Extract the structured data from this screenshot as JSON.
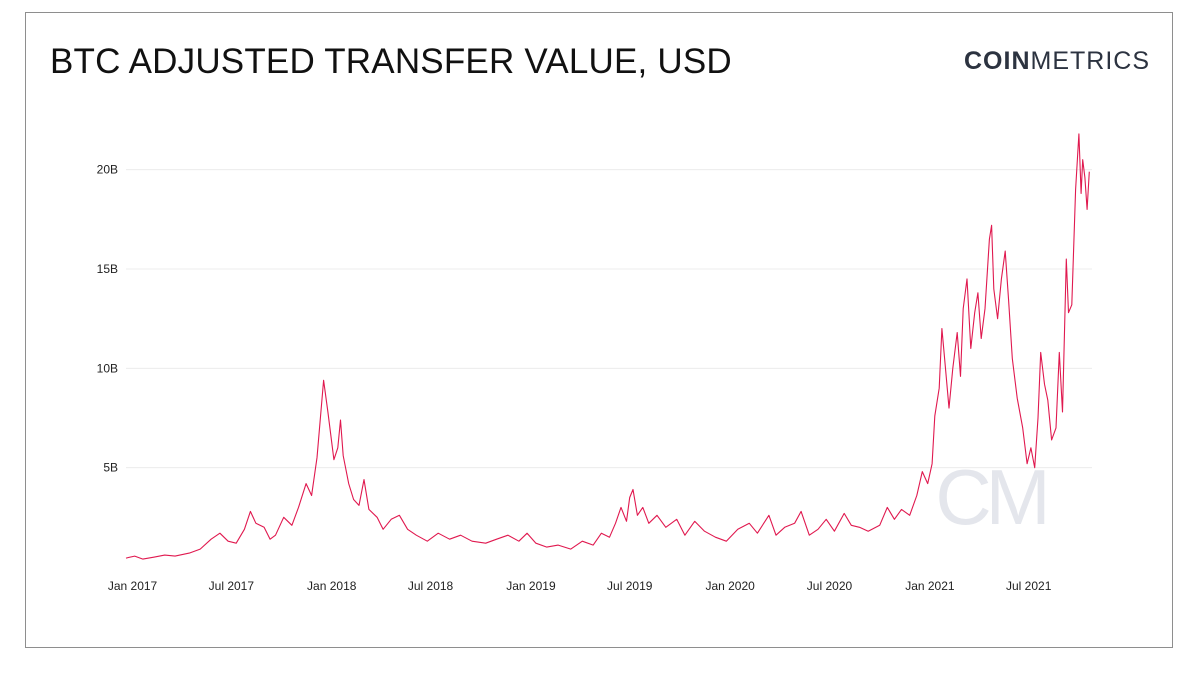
{
  "header": {
    "title": "BTC ADJUSTED TRANSFER VALUE, USD",
    "brand_bold": "COIN",
    "brand_light": "METRICS",
    "watermark": "CM"
  },
  "colors": {
    "line": "#e0194f",
    "grid": "#ececec",
    "watermark": "#e4e6ec"
  },
  "chart_data": {
    "type": "line",
    "title": "BTC ADJUSTED TRANSFER VALUE, USD",
    "xlabel": "",
    "ylabel": "",
    "ylim": [
      0,
      22.5
    ],
    "x_range": [
      "2016-12-20",
      "2021-10-25"
    ],
    "y_ticks": [
      {
        "value": 5,
        "label": "5B"
      },
      {
        "value": 10,
        "label": "10B"
      },
      {
        "value": 15,
        "label": "15B"
      },
      {
        "value": 20,
        "label": "20B"
      }
    ],
    "x_ticks": [
      {
        "date": "2017-01-01",
        "label": "Jan 2017"
      },
      {
        "date": "2017-07-01",
        "label": "Jul 2017"
      },
      {
        "date": "2018-01-01",
        "label": "Jan 2018"
      },
      {
        "date": "2018-07-01",
        "label": "Jul 2018"
      },
      {
        "date": "2019-01-01",
        "label": "Jan 2019"
      },
      {
        "date": "2019-07-01",
        "label": "Jul 2019"
      },
      {
        "date": "2020-01-01",
        "label": "Jan 2020"
      },
      {
        "date": "2020-07-01",
        "label": "Jul 2020"
      },
      {
        "date": "2021-01-01",
        "label": "Jan 2021"
      },
      {
        "date": "2021-07-01",
        "label": "Jul 2021"
      }
    ],
    "grid": true,
    "unit": "Billions USD",
    "series": [
      {
        "values": [
          [
            "2016-12-20",
            0.45
          ],
          [
            "2017-01-05",
            0.55
          ],
          [
            "2017-01-20",
            0.4
          ],
          [
            "2017-02-10",
            0.5
          ],
          [
            "2017-03-01",
            0.6
          ],
          [
            "2017-03-20",
            0.55
          ],
          [
            "2017-04-15",
            0.7
          ],
          [
            "2017-05-05",
            0.9
          ],
          [
            "2017-05-25",
            1.4
          ],
          [
            "2017-06-10",
            1.7
          ],
          [
            "2017-06-25",
            1.3
          ],
          [
            "2017-07-10",
            1.2
          ],
          [
            "2017-07-25",
            1.9
          ],
          [
            "2017-08-05",
            2.8
          ],
          [
            "2017-08-15",
            2.2
          ],
          [
            "2017-08-30",
            2.0
          ],
          [
            "2017-09-10",
            1.4
          ],
          [
            "2017-09-20",
            1.6
          ],
          [
            "2017-10-05",
            2.5
          ],
          [
            "2017-10-20",
            2.1
          ],
          [
            "2017-11-01",
            3.0
          ],
          [
            "2017-11-15",
            4.2
          ],
          [
            "2017-11-25",
            3.6
          ],
          [
            "2017-12-05",
            5.5
          ],
          [
            "2017-12-17",
            9.4
          ],
          [
            "2017-12-25",
            7.8
          ],
          [
            "2018-01-05",
            5.4
          ],
          [
            "2018-01-12",
            6.0
          ],
          [
            "2018-01-17",
            7.4
          ],
          [
            "2018-01-22",
            5.6
          ],
          [
            "2018-02-01",
            4.2
          ],
          [
            "2018-02-10",
            3.4
          ],
          [
            "2018-02-20",
            3.1
          ],
          [
            "2018-03-01",
            4.4
          ],
          [
            "2018-03-10",
            2.9
          ],
          [
            "2018-03-25",
            2.5
          ],
          [
            "2018-04-05",
            1.9
          ],
          [
            "2018-04-20",
            2.4
          ],
          [
            "2018-05-05",
            2.6
          ],
          [
            "2018-05-20",
            1.9
          ],
          [
            "2018-06-05",
            1.6
          ],
          [
            "2018-06-25",
            1.3
          ],
          [
            "2018-07-15",
            1.7
          ],
          [
            "2018-08-05",
            1.4
          ],
          [
            "2018-08-25",
            1.6
          ],
          [
            "2018-09-15",
            1.3
          ],
          [
            "2018-10-10",
            1.2
          ],
          [
            "2018-10-30",
            1.4
          ],
          [
            "2018-11-20",
            1.6
          ],
          [
            "2018-12-10",
            1.3
          ],
          [
            "2018-12-25",
            1.7
          ],
          [
            "2019-01-10",
            1.2
          ],
          [
            "2019-01-30",
            1.0
          ],
          [
            "2019-02-20",
            1.1
          ],
          [
            "2019-03-15",
            0.9
          ],
          [
            "2019-04-05",
            1.3
          ],
          [
            "2019-04-25",
            1.1
          ],
          [
            "2019-05-10",
            1.7
          ],
          [
            "2019-05-25",
            1.5
          ],
          [
            "2019-06-05",
            2.2
          ],
          [
            "2019-06-15",
            3.0
          ],
          [
            "2019-06-25",
            2.3
          ],
          [
            "2019-07-01",
            3.5
          ],
          [
            "2019-07-07",
            3.9
          ],
          [
            "2019-07-15",
            2.6
          ],
          [
            "2019-07-25",
            3.0
          ],
          [
            "2019-08-05",
            2.2
          ],
          [
            "2019-08-20",
            2.6
          ],
          [
            "2019-09-05",
            2.0
          ],
          [
            "2019-09-25",
            2.4
          ],
          [
            "2019-10-10",
            1.6
          ],
          [
            "2019-10-28",
            2.3
          ],
          [
            "2019-11-15",
            1.8
          ],
          [
            "2019-12-05",
            1.5
          ],
          [
            "2019-12-25",
            1.3
          ],
          [
            "2020-01-15",
            1.9
          ],
          [
            "2020-02-05",
            2.2
          ],
          [
            "2020-02-20",
            1.7
          ],
          [
            "2020-03-12",
            2.6
          ],
          [
            "2020-03-25",
            1.6
          ],
          [
            "2020-04-10",
            2.0
          ],
          [
            "2020-04-28",
            2.2
          ],
          [
            "2020-05-10",
            2.8
          ],
          [
            "2020-05-25",
            1.6
          ],
          [
            "2020-06-10",
            1.9
          ],
          [
            "2020-06-25",
            2.4
          ],
          [
            "2020-07-10",
            1.8
          ],
          [
            "2020-07-28",
            2.7
          ],
          [
            "2020-08-10",
            2.1
          ],
          [
            "2020-08-25",
            2.0
          ],
          [
            "2020-09-10",
            1.8
          ],
          [
            "2020-10-01",
            2.1
          ],
          [
            "2020-10-15",
            3.0
          ],
          [
            "2020-10-28",
            2.4
          ],
          [
            "2020-11-10",
            2.9
          ],
          [
            "2020-11-25",
            2.6
          ],
          [
            "2020-12-08",
            3.6
          ],
          [
            "2020-12-18",
            4.8
          ],
          [
            "2020-12-28",
            4.2
          ],
          [
            "2021-01-05",
            5.2
          ],
          [
            "2021-01-10",
            7.6
          ],
          [
            "2021-01-18",
            9.0
          ],
          [
            "2021-01-23",
            12.0
          ],
          [
            "2021-01-28",
            10.5
          ],
          [
            "2021-02-05",
            8.0
          ],
          [
            "2021-02-12",
            10.0
          ],
          [
            "2021-02-20",
            11.8
          ],
          [
            "2021-02-26",
            9.6
          ],
          [
            "2021-03-03",
            13.0
          ],
          [
            "2021-03-10",
            14.5
          ],
          [
            "2021-03-17",
            11.0
          ],
          [
            "2021-03-24",
            12.8
          ],
          [
            "2021-03-30",
            13.8
          ],
          [
            "2021-04-05",
            11.5
          ],
          [
            "2021-04-12",
            13.0
          ],
          [
            "2021-04-20",
            16.5
          ],
          [
            "2021-04-24",
            17.2
          ],
          [
            "2021-04-28",
            14.0
          ],
          [
            "2021-05-05",
            12.5
          ],
          [
            "2021-05-12",
            14.5
          ],
          [
            "2021-05-19",
            15.9
          ],
          [
            "2021-05-25",
            13.5
          ],
          [
            "2021-06-01",
            10.5
          ],
          [
            "2021-06-10",
            8.5
          ],
          [
            "2021-06-20",
            7.0
          ],
          [
            "2021-06-28",
            5.2
          ],
          [
            "2021-07-05",
            6.0
          ],
          [
            "2021-07-12",
            5.0
          ],
          [
            "2021-07-18",
            7.5
          ],
          [
            "2021-07-23",
            10.8
          ],
          [
            "2021-07-30",
            9.2
          ],
          [
            "2021-08-05",
            8.4
          ],
          [
            "2021-08-12",
            6.4
          ],
          [
            "2021-08-20",
            7.0
          ],
          [
            "2021-08-26",
            10.8
          ],
          [
            "2021-09-01",
            7.8
          ],
          [
            "2021-09-08",
            15.5
          ],
          [
            "2021-09-12",
            12.8
          ],
          [
            "2021-09-18",
            13.2
          ],
          [
            "2021-09-25",
            19.0
          ],
          [
            "2021-10-01",
            21.8
          ],
          [
            "2021-10-05",
            18.8
          ],
          [
            "2021-10-08",
            20.5
          ],
          [
            "2021-10-12",
            19.6
          ],
          [
            "2021-10-16",
            18.0
          ],
          [
            "2021-10-20",
            19.9
          ]
        ]
      }
    ]
  }
}
